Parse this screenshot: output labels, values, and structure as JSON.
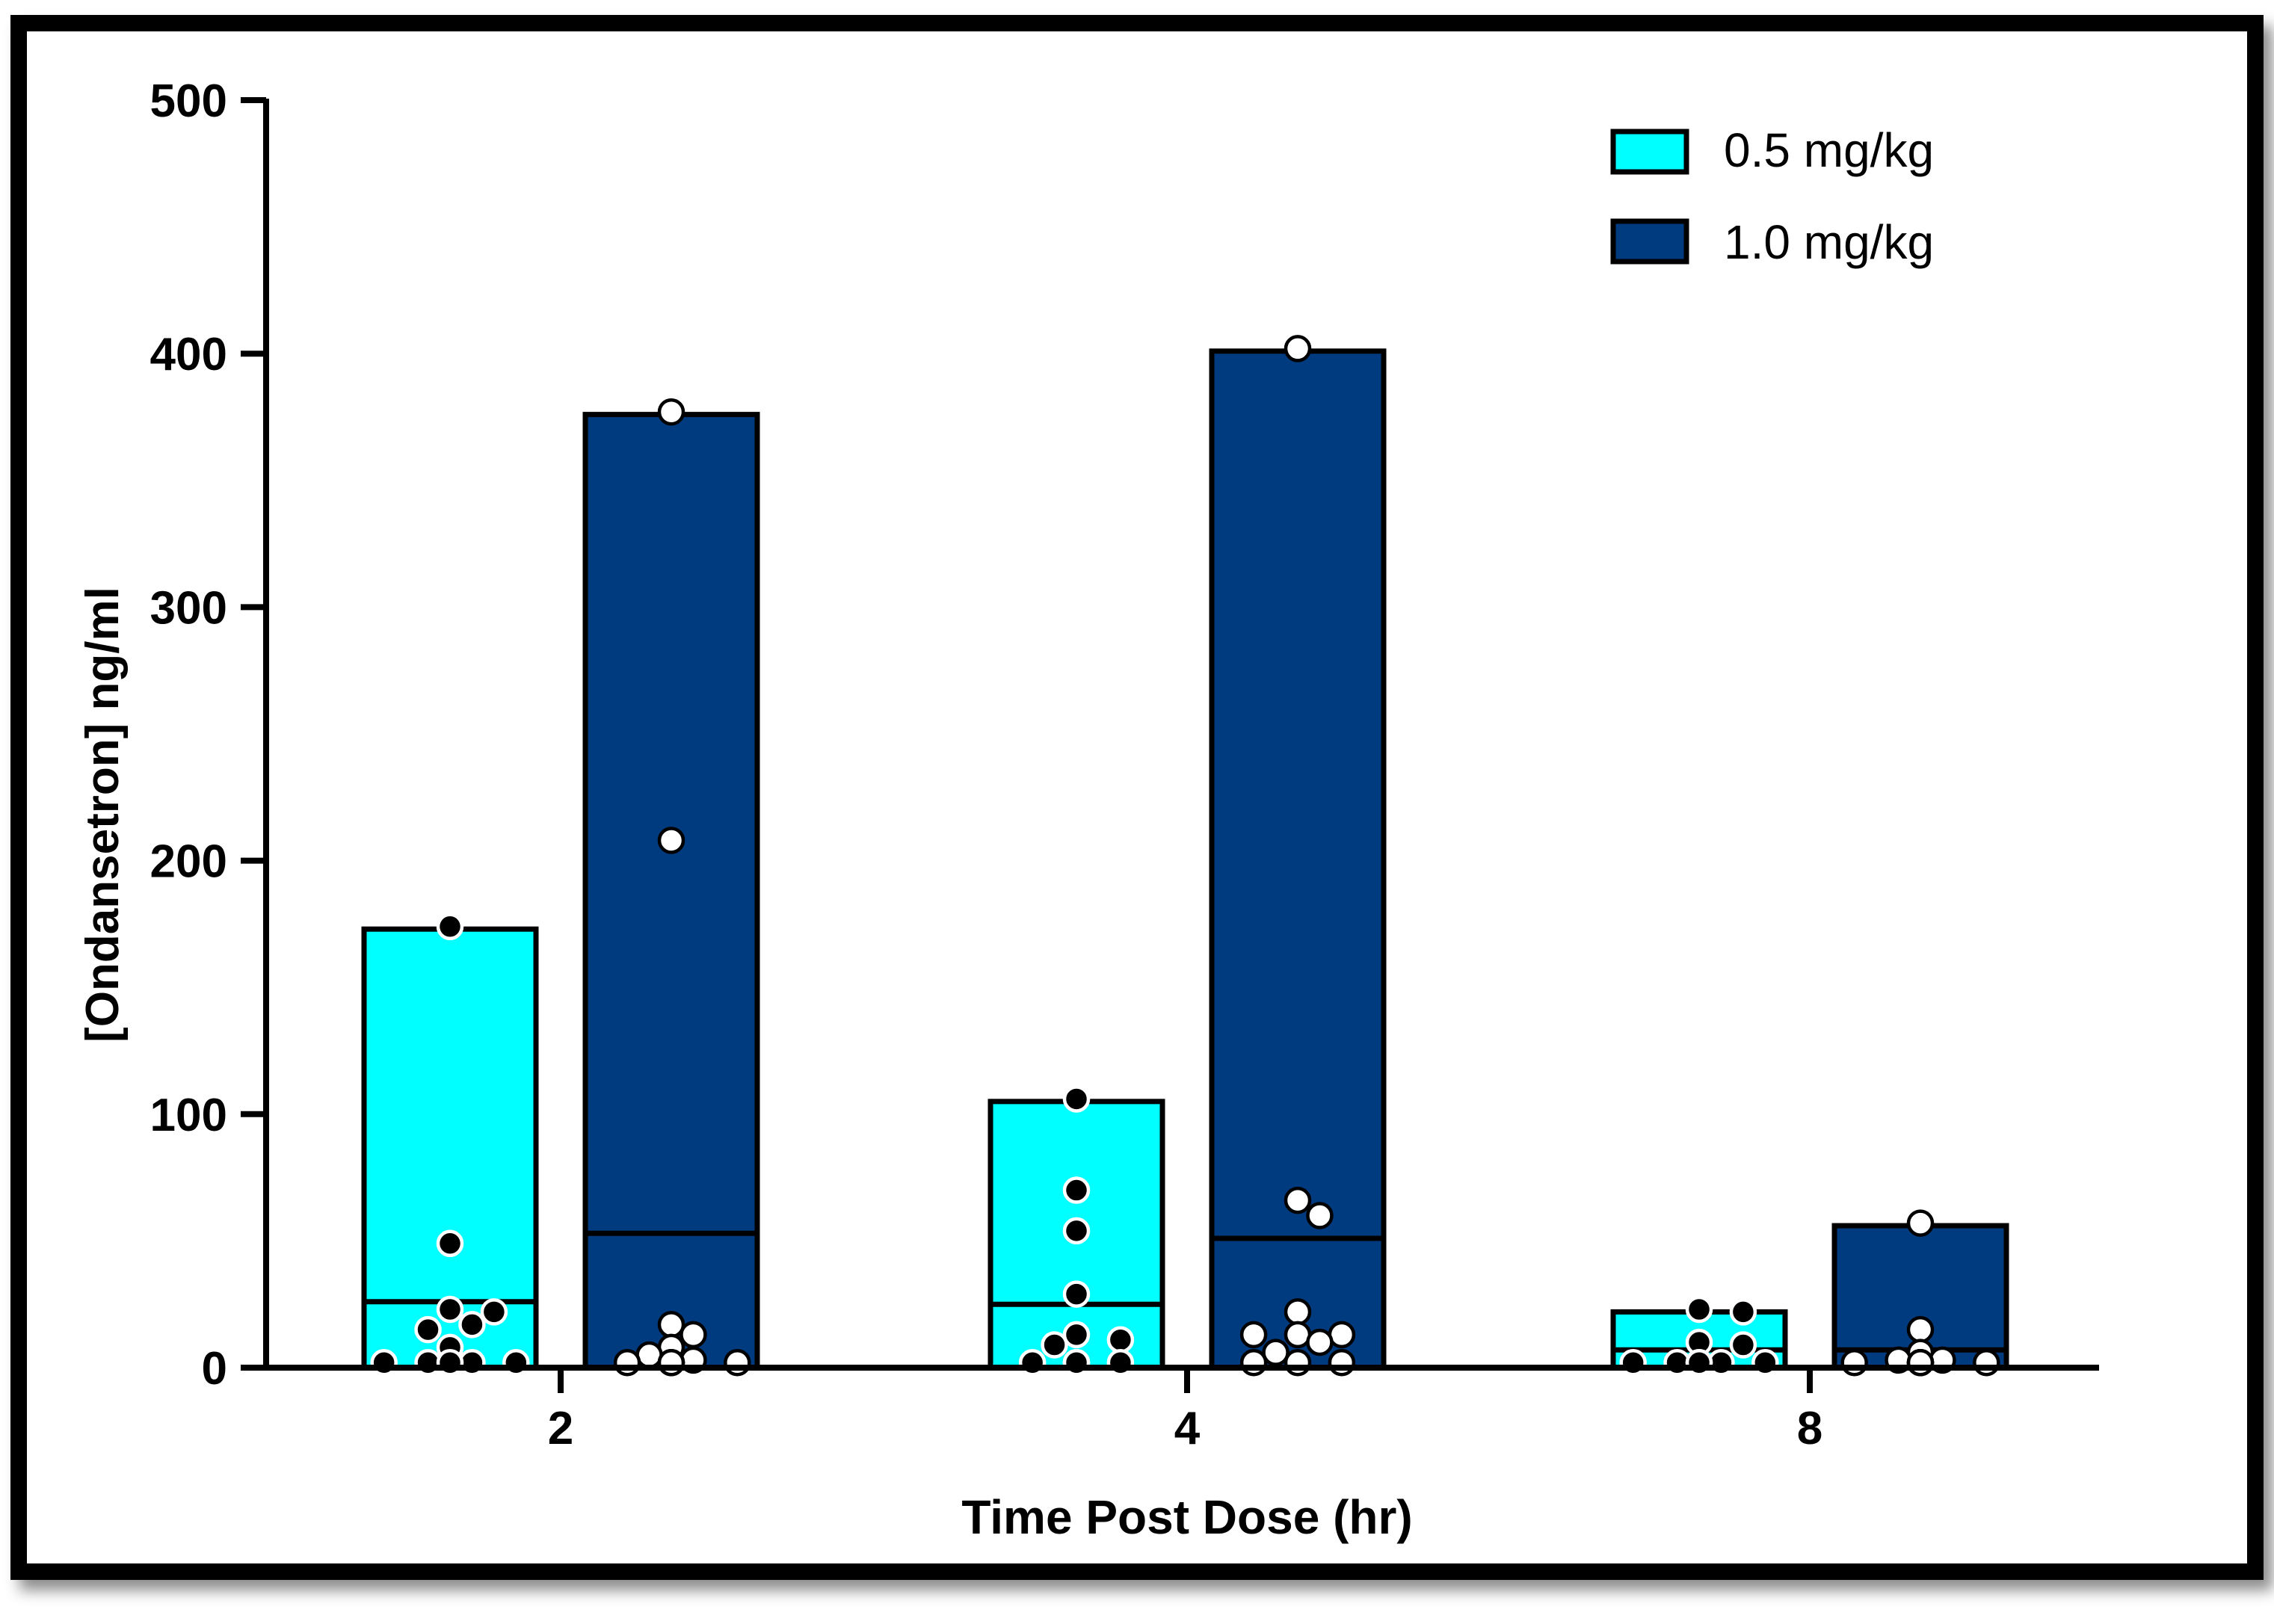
{
  "chart_data": {
    "type": "bar",
    "title": "",
    "xlabel": "Time Post Dose (hr)",
    "ylabel": "[Ondansetron] ng/ml",
    "ylim": [
      0,
      500
    ],
    "yticks": [
      0,
      100,
      200,
      300,
      400,
      500
    ],
    "categories": [
      "2",
      "4",
      "8"
    ],
    "legend_position": "top-right",
    "colors": {
      "low": "#00FFFF",
      "high": "#003B80",
      "outline": "#000000"
    },
    "series": [
      {
        "name": "0.5 mg/kg",
        "bar_max": [
          173,
          105,
          22
        ],
        "median": [
          26,
          25,
          7
        ],
        "points": [
          [
            174,
            49,
            23,
            22,
            17,
            15,
            8,
            2,
            2,
            2,
            2,
            2
          ],
          [
            106,
            70,
            54,
            29,
            13,
            11,
            9,
            2,
            2,
            2,
            2,
            2
          ],
          [
            23,
            22,
            10,
            9,
            2,
            2,
            2,
            2,
            2,
            2
          ]
        ]
      },
      {
        "name": "1.0 mg/kg",
        "bar_max": [
          376,
          401,
          56
        ],
        "median": [
          53,
          51,
          7
        ],
        "points": [
          [
            377,
            208,
            17,
            13,
            8,
            5,
            3,
            2,
            2,
            2,
            2,
            2
          ],
          [
            402,
            66,
            60,
            22,
            13,
            13,
            13,
            10,
            6,
            2,
            2,
            2
          ],
          [
            57,
            15,
            6,
            3,
            3,
            2,
            2,
            2,
            2,
            2,
            2,
            2
          ]
        ]
      }
    ]
  }
}
